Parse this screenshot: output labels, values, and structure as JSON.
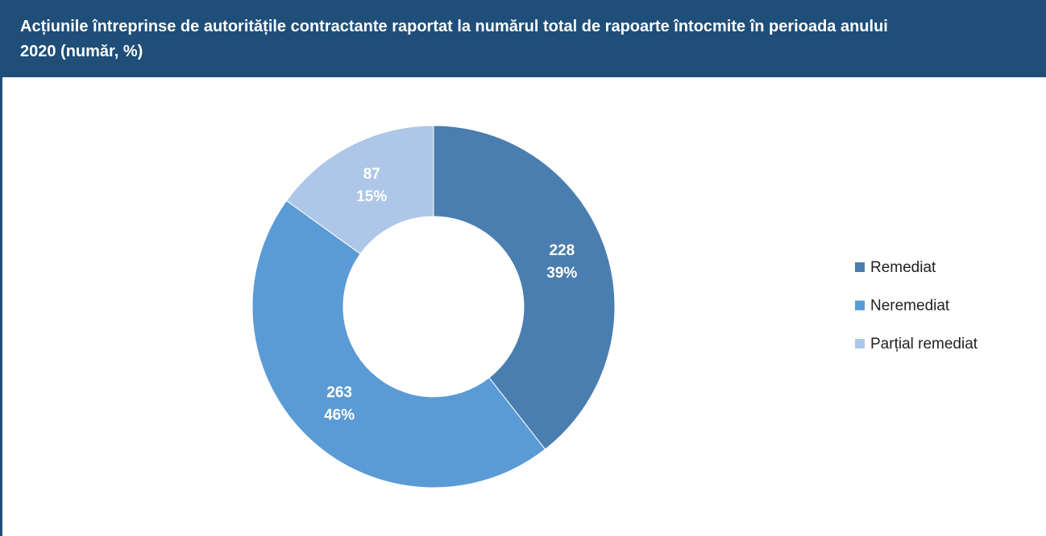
{
  "chart_data": {
    "type": "donut",
    "title": "Acțiunile întreprinse de autoritățile contractante raportat la numărul total de rapoarte întocmite în perioada anului 2020 (număr, %)",
    "categories": [
      "Remediat",
      "Neremediat",
      "Parțial remediat"
    ],
    "values": [
      228,
      263,
      87
    ],
    "shares": [
      39,
      46,
      15
    ],
    "share_labels": [
      "39%",
      "46%",
      "15%"
    ],
    "colors": [
      "#4A7EB0",
      "#5B9BD5",
      "#AEC6E8"
    ],
    "legend": "right"
  }
}
